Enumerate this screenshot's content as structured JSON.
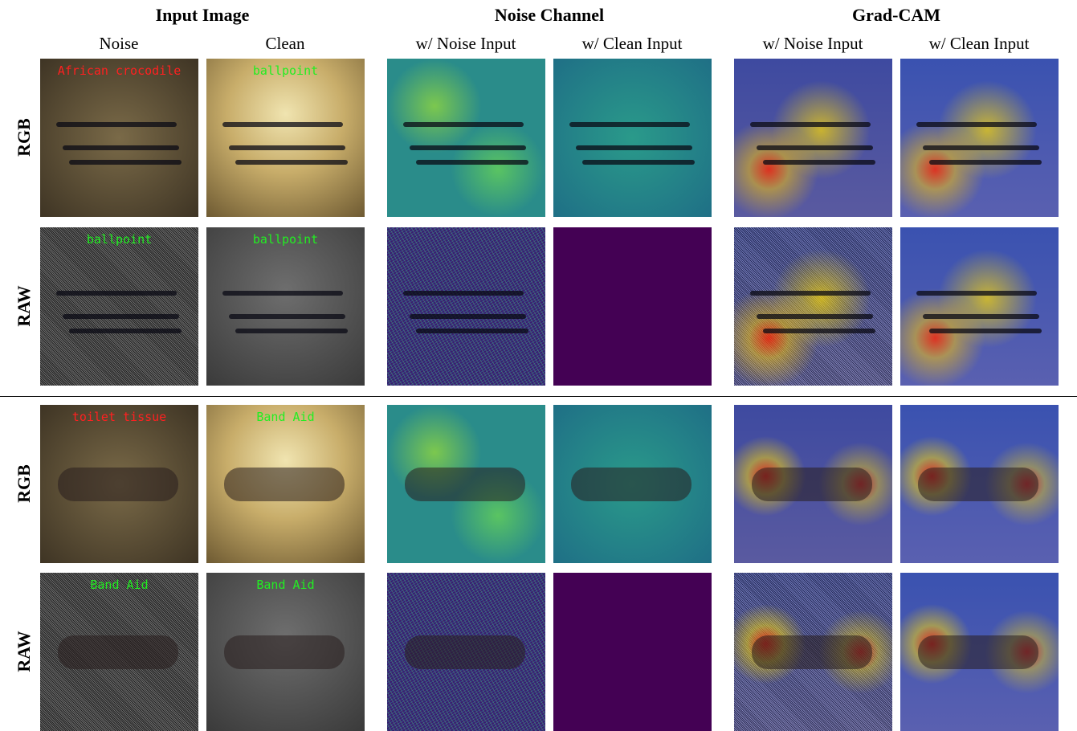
{
  "header": {
    "groups": [
      "Input Image",
      "Noise Channel",
      "Grad-CAM"
    ],
    "columns": [
      "Noise",
      "Clean",
      "w/ Noise Input",
      "w/ Clean Input",
      "w/ Noise Input",
      "w/ Clean Input"
    ]
  },
  "blocks": [
    {
      "rows": [
        {
          "label": "RGB",
          "predictions": [
            {
              "text": "African crocodile",
              "color": "#ff2020"
            },
            {
              "text": "ballpoint",
              "color": "#22ee22"
            }
          ]
        },
        {
          "label": "RAW",
          "predictions": [
            {
              "text": "ballpoint",
              "color": "#22ee22"
            },
            {
              "text": "ballpoint",
              "color": "#22ee22"
            }
          ]
        }
      ]
    },
    {
      "rows": [
        {
          "label": "RGB",
          "predictions": [
            {
              "text": "toilet tissue",
              "color": "#ff2020"
            },
            {
              "text": "Band Aid",
              "color": "#22ee22"
            }
          ]
        },
        {
          "label": "RAW",
          "predictions": [
            {
              "text": "Band Aid",
              "color": "#22ee22"
            },
            {
              "text": "Band Aid",
              "color": "#22ee22"
            }
          ]
        }
      ]
    }
  ]
}
